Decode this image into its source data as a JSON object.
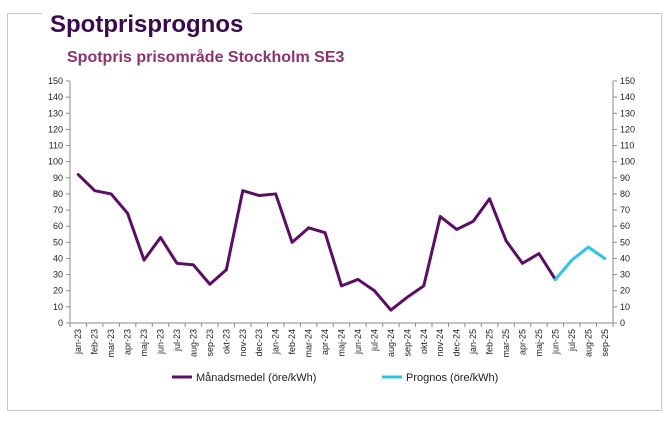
{
  "heading": "Spotprisprognos",
  "colors": {
    "primary": "#5a0f64",
    "forecast": "#2ec4e8",
    "heading": "#3a0a4d",
    "title": "#8a3472"
  },
  "chart_data": {
    "type": "line",
    "title": "Spotpris prisområde Stockholm SE3",
    "ylim": [
      0,
      150
    ],
    "yticks": [
      0,
      10,
      20,
      30,
      40,
      50,
      60,
      70,
      80,
      90,
      100,
      110,
      120,
      130,
      140,
      150
    ],
    "grid": false,
    "legend_position": "bottom",
    "categories": [
      "jan-23",
      "feb-23",
      "mar-23",
      "apr-23",
      "maj-23",
      "jun-23",
      "jul-23",
      "aug-23",
      "sep-23",
      "okt-23",
      "nov-23",
      "dec-23",
      "jan-24",
      "feb-24",
      "mar-24",
      "apr-24",
      "maj-24",
      "jun-24",
      "jul-24",
      "aug-24",
      "sep-24",
      "okt-24",
      "nov-24",
      "dec-24",
      "jan-25",
      "feb-25",
      "mar-25",
      "apr-25",
      "maj-25",
      "jun-25",
      "jul-25",
      "aug-25",
      "sep-25"
    ],
    "series": [
      {
        "name": "Månadsmedel (öre/kWh)",
        "color": "#5a0f64",
        "values": [
          92,
          82,
          80,
          68,
          39,
          53,
          37,
          36,
          24,
          33,
          82,
          79,
          80,
          50,
          59,
          56,
          23,
          27,
          20,
          8,
          16,
          23,
          66,
          58,
          63,
          77,
          51,
          37,
          43,
          27,
          null,
          null,
          null
        ]
      },
      {
        "name": "Prognos (öre/kWh)",
        "color": "#2ec4e8",
        "values": [
          null,
          null,
          null,
          null,
          null,
          null,
          null,
          null,
          null,
          null,
          null,
          null,
          null,
          null,
          null,
          null,
          null,
          null,
          null,
          null,
          null,
          null,
          null,
          null,
          null,
          null,
          null,
          null,
          null,
          27,
          39,
          47,
          40
        ]
      }
    ]
  }
}
